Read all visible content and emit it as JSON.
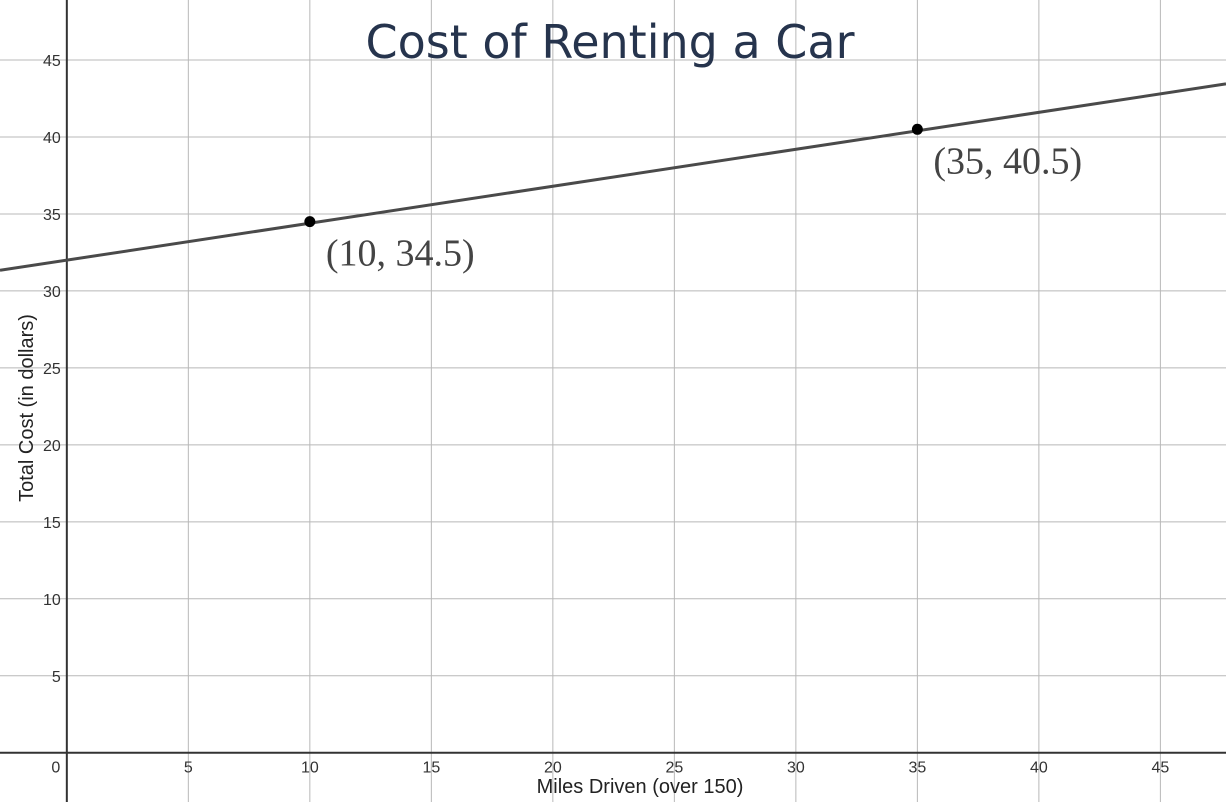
{
  "chart_data": {
    "type": "line",
    "title": "Cost of Renting a Car",
    "xlabel": "Miles Driven (over 150)",
    "ylabel": "Total Cost (in dollars)",
    "xlim": [
      -2.75,
      47.7
    ],
    "ylim": [
      -3.2,
      48.9
    ],
    "grid": true,
    "x_ticks": [
      0,
      5,
      10,
      15,
      20,
      25,
      30,
      35,
      40,
      45
    ],
    "y_ticks": [
      5,
      10,
      15,
      20,
      25,
      30,
      35,
      40,
      45
    ],
    "series": [
      {
        "points": [
          {
            "x": -2.75,
            "y": 31.34
          },
          {
            "x": 47.7,
            "y": 43.45
          }
        ],
        "color": "#4a4a4a"
      }
    ],
    "points": [
      {
        "x": 10,
        "y": 34.5,
        "label": "(10, 34.5)"
      },
      {
        "x": 35,
        "y": 40.5,
        "label": "(35, 40.5)"
      }
    ],
    "colors": {
      "grid": "#b8b8b8",
      "axis": "#333333",
      "line": "#4a4a4a",
      "point": "#000000",
      "title": "#26344d"
    }
  }
}
